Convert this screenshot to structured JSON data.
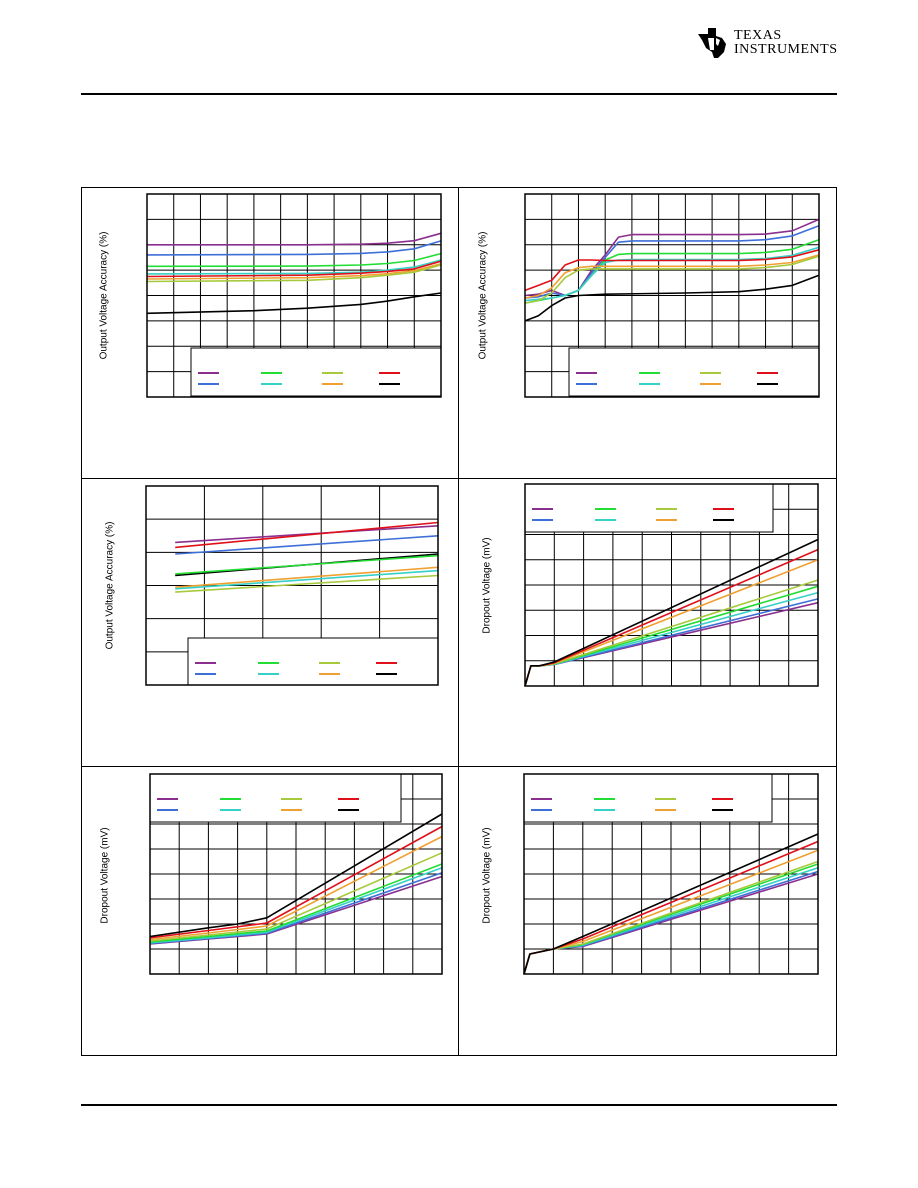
{
  "header": {
    "logo_line1": "TEXAS",
    "logo_line2": "INSTRUMENTS"
  },
  "colors": {
    "purple": "#8B2F8F",
    "blue": "#3E6FD8",
    "green": "#22DD33",
    "cyan": "#35D0C6",
    "yellowgreen": "#A7C93C",
    "orange": "#F0A030",
    "red": "#E0101A",
    "black": "#000000"
  },
  "chart_data": [
    {
      "type": "line",
      "ylabel": "Output Voltage Accuracy (%)",
      "xlim": [
        0,
        11
      ],
      "ylim": [
        0,
        8
      ],
      "legend_colors": [
        "purple",
        "green",
        "yellowgreen",
        "red",
        "blue",
        "cyan",
        "orange",
        "black"
      ],
      "series": [
        {
          "color": "purple",
          "x": [
            0,
            6,
            8,
            9,
            10,
            11
          ],
          "y": [
            6,
            6,
            6.02,
            6.06,
            6.16,
            6.45
          ]
        },
        {
          "color": "blue",
          "x": [
            0,
            6,
            8,
            9,
            10,
            11
          ],
          "y": [
            5.6,
            5.62,
            5.66,
            5.72,
            5.84,
            6.15
          ]
        },
        {
          "color": "green",
          "x": [
            0,
            6,
            8,
            9,
            10,
            11
          ],
          "y": [
            5.15,
            5.16,
            5.2,
            5.26,
            5.38,
            5.65
          ]
        },
        {
          "color": "cyan",
          "x": [
            0,
            6,
            8,
            9,
            10,
            11
          ],
          "y": [
            4.85,
            4.87,
            4.92,
            5,
            5.12,
            5.4
          ]
        },
        {
          "color": "red",
          "x": [
            0,
            6,
            8,
            9,
            10,
            11
          ],
          "y": [
            4.75,
            4.8,
            4.88,
            4.95,
            5.05,
            5.35
          ]
        },
        {
          "color": "orange",
          "x": [
            0,
            6,
            8,
            9,
            10,
            11
          ],
          "y": [
            4.65,
            4.7,
            4.78,
            4.86,
            4.98,
            5.25
          ]
        },
        {
          "color": "yellowgreen",
          "x": [
            0,
            6,
            8,
            9,
            10,
            11
          ],
          "y": [
            4.55,
            4.6,
            4.7,
            4.8,
            4.92,
            5.2
          ]
        },
        {
          "color": "black",
          "x": [
            0,
            4,
            6,
            8,
            9,
            10,
            11
          ],
          "y": [
            3.3,
            3.4,
            3.5,
            3.65,
            3.78,
            3.95,
            4.1
          ]
        }
      ]
    },
    {
      "type": "line",
      "ylabel": "Output Voltage Accuracy (%)",
      "xlim": [
        0,
        11
      ],
      "ylim": [
        0,
        8
      ],
      "legend_colors": [
        "purple",
        "green",
        "yellowgreen",
        "red",
        "blue",
        "cyan",
        "orange",
        "black"
      ],
      "series": [
        {
          "color": "purple",
          "x": [
            0,
            0.5,
            1,
            1.5,
            2,
            2.5,
            3,
            3.5,
            4,
            8,
            9,
            10,
            11
          ],
          "y": [
            4,
            4.05,
            4.2,
            4,
            4.2,
            5,
            5.6,
            6.3,
            6.4,
            6.4,
            6.42,
            6.55,
            7
          ]
        },
        {
          "color": "blue",
          "x": [
            0,
            0.5,
            1,
            1.5,
            2,
            2.5,
            3,
            3.5,
            4,
            8,
            9,
            10,
            11
          ],
          "y": [
            3.9,
            3.95,
            4.1,
            4,
            4.2,
            4.9,
            5.5,
            6.1,
            6.15,
            6.15,
            6.2,
            6.35,
            6.75
          ]
        },
        {
          "color": "green",
          "x": [
            0,
            0.5,
            1,
            1.5,
            2,
            2.5,
            3,
            3.5,
            4,
            8,
            9,
            10,
            11
          ],
          "y": [
            3.7,
            3.8,
            3.9,
            4,
            4.2,
            4.8,
            5.4,
            5.62,
            5.65,
            5.65,
            5.7,
            5.82,
            6.2
          ]
        },
        {
          "color": "cyan",
          "x": [
            0,
            0.5,
            1,
            1.5,
            2,
            2.5,
            3,
            3.5,
            4,
            8,
            9,
            10,
            11
          ],
          "y": [
            3.8,
            3.85,
            3.9,
            4,
            4.2,
            4.8,
            5.3,
            5.4,
            5.42,
            5.42,
            5.46,
            5.58,
            5.9
          ]
        },
        {
          "color": "red",
          "x": [
            0,
            0.5,
            1,
            1.5,
            2,
            2.5,
            3,
            3.5,
            4,
            8,
            9,
            10,
            11
          ],
          "y": [
            4.2,
            4.4,
            4.6,
            5.2,
            5.4,
            5.4,
            5.38,
            5.38,
            5.38,
            5.38,
            5.42,
            5.52,
            5.8
          ]
        },
        {
          "color": "orange",
          "x": [
            0,
            0.5,
            1,
            1.5,
            2,
            2.5,
            3,
            3.5,
            4,
            8,
            9,
            10,
            11
          ],
          "y": [
            3.9,
            4,
            4.3,
            4.9,
            5.1,
            5.15,
            5.15,
            5.15,
            5.15,
            5.15,
            5.2,
            5.3,
            5.6
          ]
        },
        {
          "color": "yellowgreen",
          "x": [
            0,
            0.5,
            1,
            1.5,
            2,
            2.5,
            3,
            3.5,
            4,
            8,
            9,
            10,
            11
          ],
          "y": [
            3.7,
            3.8,
            4.1,
            4.7,
            5,
            5.05,
            5.05,
            5.05,
            5.05,
            5.05,
            5.1,
            5.22,
            5.55
          ]
        },
        {
          "color": "black",
          "x": [
            0,
            0.5,
            1,
            1.5,
            2,
            3,
            6,
            8,
            9,
            10,
            11
          ],
          "y": [
            3,
            3.2,
            3.6,
            3.9,
            4,
            4.05,
            4.1,
            4.15,
            4.25,
            4.4,
            4.8
          ]
        }
      ]
    },
    {
      "type": "line",
      "ylabel": "Output Voltage Accuracy (%)",
      "xlim": [
        0,
        5
      ],
      "ylim": [
        0,
        6
      ],
      "legend_colors": [
        "purple",
        "green",
        "yellowgreen",
        "red",
        "blue",
        "cyan",
        "orange",
        "black"
      ],
      "series": [
        {
          "color": "purple",
          "x": [
            0.5,
            5
          ],
          "y": [
            4.3,
            4.8
          ]
        },
        {
          "color": "red",
          "x": [
            0.5,
            5
          ],
          "y": [
            4.15,
            4.9
          ]
        },
        {
          "color": "blue",
          "x": [
            0.5,
            5
          ],
          "y": [
            3.95,
            4.5
          ]
        },
        {
          "color": "black",
          "x": [
            0.5,
            5
          ],
          "y": [
            3.3,
            3.95
          ]
        },
        {
          "color": "green",
          "x": [
            0.5,
            5
          ],
          "y": [
            3.35,
            3.9
          ]
        },
        {
          "color": "orange",
          "x": [
            0.5,
            5
          ],
          "y": [
            2.95,
            3.55
          ]
        },
        {
          "color": "cyan",
          "x": [
            0.5,
            5
          ],
          "y": [
            2.9,
            3.45
          ]
        },
        {
          "color": "yellowgreen",
          "x": [
            0.5,
            5
          ],
          "y": [
            2.8,
            3.3
          ]
        }
      ]
    },
    {
      "type": "line",
      "ylabel": "Dropout Voltage (mV)",
      "xlim": [
        0,
        10
      ],
      "ylim": [
        0,
        8
      ],
      "legend_colors": [
        "purple",
        "green",
        "yellowgreen",
        "red",
        "blue",
        "cyan",
        "orange",
        "black"
      ],
      "series": [
        {
          "color": "purple",
          "x": [
            0,
            0.2,
            0.5,
            1,
            10
          ],
          "y": [
            0,
            0.8,
            0.8,
            0.85,
            3.3
          ]
        },
        {
          "color": "blue",
          "x": [
            0,
            0.2,
            0.5,
            1,
            10
          ],
          "y": [
            0,
            0.8,
            0.8,
            0.85,
            3.45
          ]
        },
        {
          "color": "cyan",
          "x": [
            0,
            0.2,
            0.5,
            1,
            10
          ],
          "y": [
            0,
            0.8,
            0.8,
            0.86,
            3.7
          ]
        },
        {
          "color": "green",
          "x": [
            0,
            0.2,
            0.5,
            1,
            10
          ],
          "y": [
            0,
            0.8,
            0.8,
            0.87,
            3.95
          ]
        },
        {
          "color": "yellowgreen",
          "x": [
            0,
            0.2,
            0.5,
            1,
            10
          ],
          "y": [
            0,
            0.8,
            0.8,
            0.88,
            4.2
          ]
        },
        {
          "color": "orange",
          "x": [
            0,
            0.2,
            0.5,
            1,
            10
          ],
          "y": [
            0,
            0.8,
            0.8,
            0.9,
            5
          ]
        },
        {
          "color": "red",
          "x": [
            0,
            0.2,
            0.5,
            1,
            10
          ],
          "y": [
            0,
            0.8,
            0.8,
            0.92,
            5.4
          ]
        },
        {
          "color": "black",
          "x": [
            0,
            0.2,
            0.5,
            1,
            10
          ],
          "y": [
            0,
            0.8,
            0.8,
            0.95,
            5.8
          ]
        }
      ]
    },
    {
      "type": "line",
      "ylabel": "Dropout Voltage (mV)",
      "xlim": [
        0,
        10
      ],
      "ylim": [
        0,
        8
      ],
      "legend_colors": [
        "purple",
        "green",
        "yellowgreen",
        "red",
        "blue",
        "cyan",
        "orange",
        "black"
      ],
      "series": [
        {
          "color": "purple",
          "x": [
            0,
            2,
            4,
            10
          ],
          "y": [
            1.2,
            1.4,
            1.6,
            3.9
          ]
        },
        {
          "color": "blue",
          "x": [
            0,
            2,
            4,
            10
          ],
          "y": [
            1.22,
            1.42,
            1.63,
            4.05
          ]
        },
        {
          "color": "cyan",
          "x": [
            0,
            2,
            4,
            10
          ],
          "y": [
            1.25,
            1.45,
            1.67,
            4.25
          ]
        },
        {
          "color": "green",
          "x": [
            0,
            2,
            4,
            10
          ],
          "y": [
            1.28,
            1.5,
            1.72,
            4.4
          ]
        },
        {
          "color": "yellowgreen",
          "x": [
            0,
            2,
            4,
            10
          ],
          "y": [
            1.32,
            1.56,
            1.8,
            4.85
          ]
        },
        {
          "color": "orange",
          "x": [
            0,
            2,
            4,
            10
          ],
          "y": [
            1.38,
            1.64,
            1.92,
            5.5
          ]
        },
        {
          "color": "red",
          "x": [
            0,
            2,
            4,
            10
          ],
          "y": [
            1.45,
            1.74,
            2.04,
            5.9
          ]
        },
        {
          "color": "black",
          "x": [
            0,
            2,
            3,
            4,
            10
          ],
          "y": [
            1.5,
            1.85,
            2,
            2.25,
            6.4
          ]
        }
      ]
    },
    {
      "type": "line",
      "ylabel": "Dropout Voltage (mV)",
      "xlim": [
        0,
        10
      ],
      "ylim": [
        0,
        8
      ],
      "legend_colors": [
        "purple",
        "green",
        "yellowgreen",
        "red",
        "blue",
        "cyan",
        "orange",
        "black"
      ],
      "series": [
        {
          "color": "purple",
          "x": [
            0,
            0.2,
            1,
            2,
            10
          ],
          "y": [
            0,
            0.8,
            1,
            1.1,
            4
          ]
        },
        {
          "color": "blue",
          "x": [
            0,
            0.2,
            1,
            2,
            10
          ],
          "y": [
            0,
            0.8,
            1,
            1.12,
            4.1
          ]
        },
        {
          "color": "cyan",
          "x": [
            0,
            0.2,
            1,
            2,
            10
          ],
          "y": [
            0,
            0.8,
            1,
            1.15,
            4.25
          ]
        },
        {
          "color": "green",
          "x": [
            0,
            0.2,
            1,
            2,
            10
          ],
          "y": [
            0,
            0.8,
            1,
            1.18,
            4.4
          ]
        },
        {
          "color": "yellowgreen",
          "x": [
            0,
            0.2,
            1,
            2,
            10
          ],
          "y": [
            0,
            0.8,
            1,
            1.2,
            4.5
          ]
        },
        {
          "color": "orange",
          "x": [
            0,
            0.2,
            1,
            2,
            10
          ],
          "y": [
            0,
            0.8,
            1,
            1.3,
            4.95
          ]
        },
        {
          "color": "red",
          "x": [
            0,
            0.2,
            1,
            2,
            10
          ],
          "y": [
            0,
            0.8,
            1,
            1.4,
            5.3
          ]
        },
        {
          "color": "black",
          "x": [
            0,
            0.2,
            1,
            2,
            10
          ],
          "y": [
            0,
            0.8,
            1,
            1.5,
            5.6
          ]
        }
      ]
    }
  ]
}
